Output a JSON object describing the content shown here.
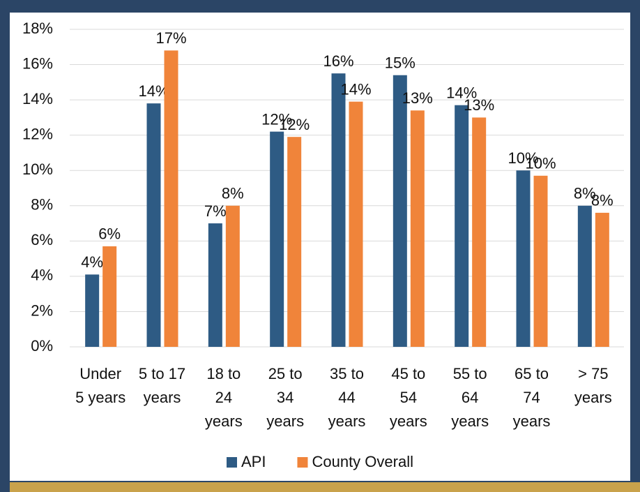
{
  "chart_data": {
    "type": "bar",
    "categories": [
      [
        "Under",
        "5 years"
      ],
      [
        "5 to 17",
        "years"
      ],
      [
        "18 to",
        "24",
        "years"
      ],
      [
        "25 to",
        "34",
        "years"
      ],
      [
        "35 to",
        "44",
        "years"
      ],
      [
        "45 to",
        "54",
        "years"
      ],
      [
        "55 to",
        "64",
        "years"
      ],
      [
        "65 to",
        "74",
        "years"
      ],
      [
        "> 75",
        "years"
      ]
    ],
    "series": [
      {
        "name": "API",
        "color": "#2e5b84",
        "values": [
          4.1,
          13.8,
          7.0,
          12.2,
          15.5,
          15.4,
          13.7,
          10.0,
          8.0
        ],
        "value_labels": [
          "4%",
          "14%",
          "7%",
          "12%",
          "16%",
          "15%",
          "14%",
          "10%",
          "8%"
        ]
      },
      {
        "name": "County Overall",
        "color": "#f0843a",
        "values": [
          5.7,
          16.8,
          8.0,
          11.9,
          13.9,
          13.4,
          13.0,
          9.7,
          7.6
        ],
        "value_labels": [
          "6%",
          "17%",
          "8%",
          "12%",
          "14%",
          "13%",
          "13%",
          "10%",
          "8%"
        ]
      }
    ],
    "ylim": [
      0,
      18
    ],
    "yticks": [
      {
        "value": 0,
        "label": "0%"
      },
      {
        "value": 2,
        "label": "2%"
      },
      {
        "value": 4,
        "label": "4%"
      },
      {
        "value": 6,
        "label": "6%"
      },
      {
        "value": 8,
        "label": "8%"
      },
      {
        "value": 10,
        "label": "10%"
      },
      {
        "value": 12,
        "label": "12%"
      },
      {
        "value": 14,
        "label": "14%"
      },
      {
        "value": 16,
        "label": "16%"
      },
      {
        "value": 18,
        "label": "18%"
      }
    ],
    "grid": true,
    "legend": "bottom"
  }
}
